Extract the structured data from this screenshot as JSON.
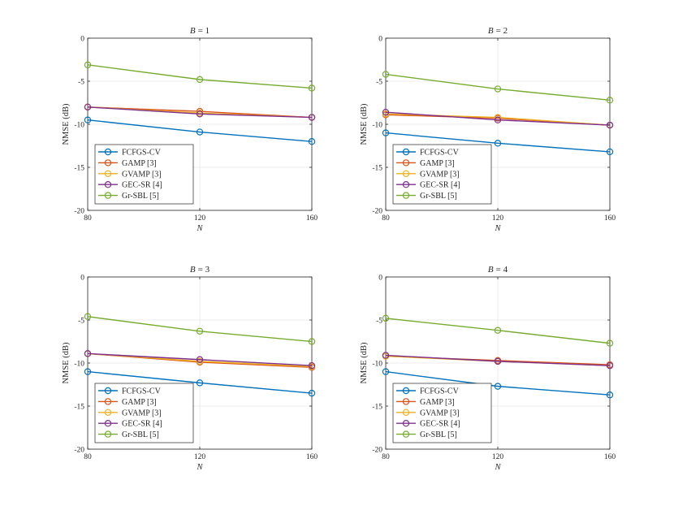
{
  "figure": {
    "colors": {
      "FCFGS-CV": "#0072BD",
      "GAMP [3]": "#D95319",
      "GVAMP [3]": "#EDB120",
      "GEC-SR [4]": "#7E2F8E",
      "Gr-SBL [5]": "#77AC30"
    },
    "grid": true,
    "marker": "circle"
  },
  "chart_data": [
    {
      "type": "line",
      "title_prefix": "B",
      "title_value": "= 1",
      "xlabel": "N",
      "ylabel": "NMSE (dB)",
      "x": [
        80,
        120,
        160
      ],
      "xlim": [
        80,
        160
      ],
      "ylim": [
        -20,
        0
      ],
      "xticks": [
        "80",
        "120",
        "160"
      ],
      "yticks": [
        "-20",
        "-15",
        "-10",
        "-5",
        "0"
      ],
      "legend_position": "bottom-left",
      "series": [
        {
          "name": "FCFGS-CV",
          "values": [
            -9.5,
            -10.9,
            -12.0
          ]
        },
        {
          "name": "GAMP [3]",
          "values": [
            -8.0,
            -8.5,
            -9.2
          ]
        },
        {
          "name": "GVAMP [3]",
          "values": [
            -8.0,
            -8.7,
            -9.2
          ]
        },
        {
          "name": "GEC-SR [4]",
          "values": [
            -8.0,
            -8.8,
            -9.2
          ]
        },
        {
          "name": "Gr-SBL [5]",
          "values": [
            -3.1,
            -4.8,
            -5.8
          ]
        }
      ]
    },
    {
      "type": "line",
      "title_prefix": "B",
      "title_value": "= 2",
      "xlabel": "N",
      "ylabel": "NMSE (dB)",
      "x": [
        80,
        120,
        160
      ],
      "xlim": [
        80,
        160
      ],
      "ylim": [
        -20,
        0
      ],
      "xticks": [
        "80",
        "120",
        "160"
      ],
      "yticks": [
        "-20",
        "-15",
        "-10",
        "-5",
        "0"
      ],
      "legend_position": "bottom-left",
      "series": [
        {
          "name": "FCFGS-CV",
          "values": [
            -11.0,
            -12.2,
            -13.2
          ]
        },
        {
          "name": "GAMP [3]",
          "values": [
            -8.9,
            -9.3,
            -10.1
          ]
        },
        {
          "name": "GVAMP [3]",
          "values": [
            -8.8,
            -9.2,
            -10.1
          ]
        },
        {
          "name": "GEC-SR [4]",
          "values": [
            -8.6,
            -9.5,
            -10.1
          ]
        },
        {
          "name": "Gr-SBL [5]",
          "values": [
            -4.2,
            -5.9,
            -7.2
          ]
        }
      ]
    },
    {
      "type": "line",
      "title_prefix": "B",
      "title_value": "= 3",
      "xlabel": "N",
      "ylabel": "NMSE (dB)",
      "x": [
        80,
        120,
        160
      ],
      "xlim": [
        80,
        160
      ],
      "ylim": [
        -20,
        0
      ],
      "xticks": [
        "80",
        "120",
        "160"
      ],
      "yticks": [
        "-20",
        "-15",
        "-10",
        "-5",
        "0"
      ],
      "legend_position": "bottom-left",
      "series": [
        {
          "name": "FCFGS-CV",
          "values": [
            -11.0,
            -12.3,
            -13.5
          ]
        },
        {
          "name": "GAMP [3]",
          "values": [
            -8.9,
            -9.9,
            -10.5
          ]
        },
        {
          "name": "GVAMP [3]",
          "values": [
            -8.9,
            -9.8,
            -10.4
          ]
        },
        {
          "name": "GEC-SR [4]",
          "values": [
            -8.9,
            -9.6,
            -10.3
          ]
        },
        {
          "name": "Gr-SBL [5]",
          "values": [
            -4.6,
            -6.3,
            -7.5
          ]
        }
      ]
    },
    {
      "type": "line",
      "title_prefix": "B",
      "title_value": "= 4",
      "xlabel": "N",
      "ylabel": "NMSE (dB)",
      "x": [
        80,
        120,
        160
      ],
      "xlim": [
        80,
        160
      ],
      "ylim": [
        -20,
        0
      ],
      "xticks": [
        "80",
        "120",
        "160"
      ],
      "yticks": [
        "-20",
        "-15",
        "-10",
        "-5",
        "0"
      ],
      "legend_position": "bottom-left",
      "series": [
        {
          "name": "FCFGS-CV",
          "values": [
            -11.0,
            -12.7,
            -13.7
          ]
        },
        {
          "name": "GAMP [3]",
          "values": [
            -9.2,
            -9.7,
            -10.2
          ]
        },
        {
          "name": "GVAMP [3]",
          "values": [
            -9.2,
            -9.8,
            -10.3
          ]
        },
        {
          "name": "GEC-SR [4]",
          "values": [
            -9.1,
            -9.8,
            -10.3
          ]
        },
        {
          "name": "Gr-SBL [5]",
          "values": [
            -4.8,
            -6.2,
            -7.7
          ]
        }
      ]
    }
  ]
}
